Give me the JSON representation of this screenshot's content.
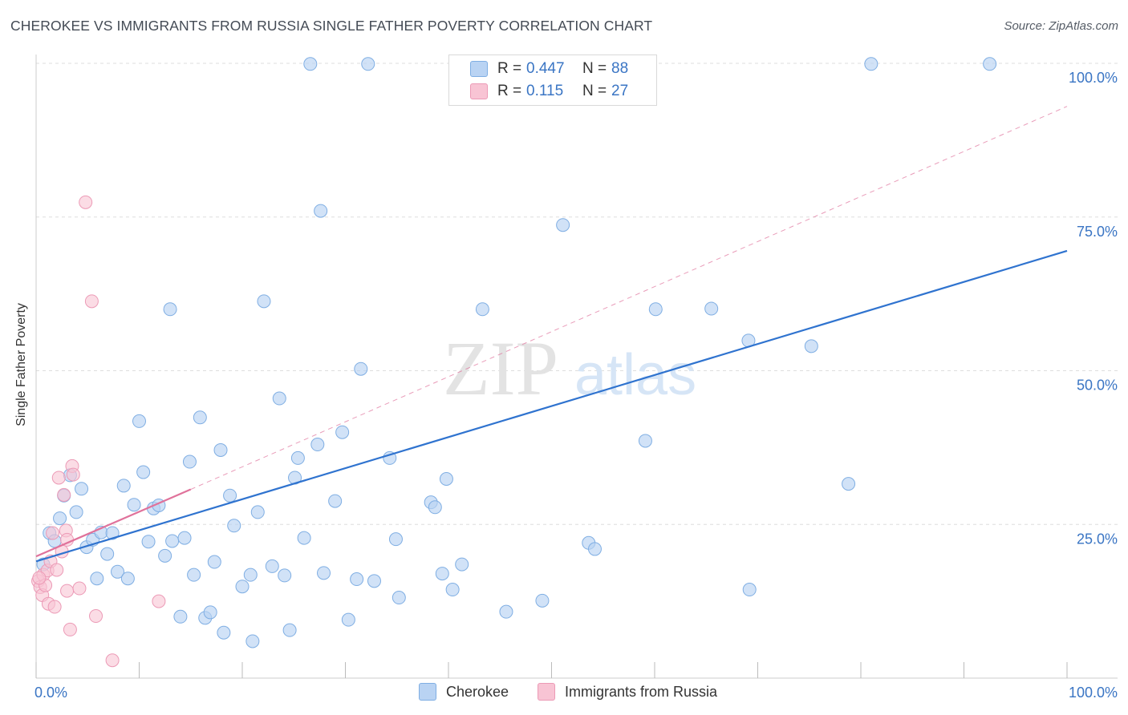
{
  "title": "CHEROKEE VS IMMIGRANTS FROM RUSSIA SINGLE FATHER POVERTY CORRELATION CHART",
  "source": "Source: ZipAtlas.com",
  "watermark": {
    "zip": "ZIP",
    "atlas": "atlas"
  },
  "legend": {
    "r_label": "R =",
    "n_label": "N =",
    "rows": [
      {
        "r": "0.447",
        "n": "88"
      },
      {
        "r": "0.115",
        "n": "27"
      }
    ]
  },
  "colors": {
    "cherokee_fill": "#b9d3f3",
    "cherokee_stroke": "#7faee3",
    "cherokee_line": "#2f73cf",
    "russia_fill": "#f8c4d4",
    "russia_stroke": "#ec9ab6",
    "russia_line": "#e0729b",
    "axis_text": "#3a75c4",
    "grid": "#dddddd"
  },
  "chart_data": {
    "type": "scatter",
    "xlabel": "",
    "ylabel": "Single Father Poverty",
    "xlim": [
      0,
      100
    ],
    "ylim": [
      0,
      100
    ],
    "x_tick_labels": [
      {
        "value": 0,
        "label": "0.0%"
      },
      {
        "value": 100,
        "label": "100.0%"
      }
    ],
    "y_tick_labels": [
      {
        "value": 25,
        "label": "25.0%"
      },
      {
        "value": 50,
        "label": "50.0%"
      },
      {
        "value": 75,
        "label": "75.0%"
      },
      {
        "value": 100,
        "label": "100.0%"
      }
    ],
    "grid": true,
    "legend_position": "top-center",
    "series": [
      {
        "name": "Cherokee",
        "r": 0.447,
        "n": 88,
        "trend": {
          "x": [
            0,
            100
          ],
          "y": [
            19.0,
            69.5
          ],
          "style": "solid"
        },
        "points": [
          [
            0.7,
            18.5
          ],
          [
            1.3,
            23.6
          ],
          [
            1.8,
            22.3
          ],
          [
            2.3,
            26.0
          ],
          [
            2.7,
            29.7
          ],
          [
            3.3,
            33.0
          ],
          [
            3.9,
            27.0
          ],
          [
            4.4,
            30.8
          ],
          [
            4.9,
            21.3
          ],
          [
            5.5,
            22.5
          ],
          [
            5.9,
            16.2
          ],
          [
            6.3,
            23.7
          ],
          [
            6.9,
            20.2
          ],
          [
            7.4,
            23.6
          ],
          [
            7.9,
            17.3
          ],
          [
            8.5,
            31.3
          ],
          [
            8.9,
            16.2
          ],
          [
            9.5,
            28.2
          ],
          [
            10.0,
            41.8
          ],
          [
            10.4,
            33.5
          ],
          [
            10.9,
            22.2
          ],
          [
            11.4,
            27.6
          ],
          [
            11.9,
            28.1
          ],
          [
            12.5,
            19.9
          ],
          [
            13.0,
            60.0
          ],
          [
            13.2,
            22.3
          ],
          [
            14.0,
            10.0
          ],
          [
            14.4,
            22.8
          ],
          [
            14.9,
            35.2
          ],
          [
            15.3,
            16.8
          ],
          [
            15.9,
            42.4
          ],
          [
            16.4,
            9.8
          ],
          [
            16.9,
            10.7
          ],
          [
            17.3,
            18.9
          ],
          [
            17.9,
            37.1
          ],
          [
            18.2,
            7.4
          ],
          [
            18.8,
            29.7
          ],
          [
            19.2,
            24.8
          ],
          [
            20.0,
            14.9
          ],
          [
            20.8,
            16.8
          ],
          [
            21.0,
            6.0
          ],
          [
            21.5,
            27.0
          ],
          [
            22.1,
            61.3
          ],
          [
            22.9,
            18.2
          ],
          [
            23.6,
            45.5
          ],
          [
            24.1,
            16.7
          ],
          [
            24.6,
            7.8
          ],
          [
            25.1,
            32.6
          ],
          [
            25.4,
            35.8
          ],
          [
            26.0,
            22.8
          ],
          [
            26.6,
            99.9
          ],
          [
            27.6,
            76.0
          ],
          [
            27.3,
            38.0
          ],
          [
            27.9,
            17.1
          ],
          [
            29.0,
            28.8
          ],
          [
            29.7,
            40.0
          ],
          [
            30.3,
            9.5
          ],
          [
            31.1,
            16.1
          ],
          [
            31.5,
            50.3
          ],
          [
            32.2,
            99.9
          ],
          [
            32.8,
            15.8
          ],
          [
            34.3,
            35.8
          ],
          [
            34.9,
            22.6
          ],
          [
            35.2,
            13.1
          ],
          [
            38.3,
            28.6
          ],
          [
            38.7,
            27.8
          ],
          [
            39.4,
            17.0
          ],
          [
            39.8,
            32.4
          ],
          [
            40.4,
            14.4
          ],
          [
            41.3,
            18.5
          ],
          [
            43.3,
            60.0
          ],
          [
            45.6,
            10.8
          ],
          [
            47.8,
            99.9
          ],
          [
            49.1,
            12.6
          ],
          [
            51.1,
            73.7
          ],
          [
            52.2,
            99.9
          ],
          [
            53.6,
            22.0
          ],
          [
            54.2,
            21.0
          ],
          [
            59.1,
            38.6
          ],
          [
            60.1,
            60.0
          ],
          [
            65.5,
            60.1
          ],
          [
            69.1,
            54.9
          ],
          [
            69.2,
            14.4
          ],
          [
            75.2,
            54.0
          ],
          [
            78.8,
            31.6
          ],
          [
            81.0,
            99.9
          ],
          [
            92.5,
            99.9
          ],
          [
            48.5,
            97.2
          ]
        ]
      },
      {
        "name": "Immigrants from Russia",
        "r": 0.115,
        "n": 27,
        "trend": {
          "x": [
            0,
            15
          ],
          "y": [
            19.8,
            30.7
          ],
          "style": "solid",
          "extended_to": [
            100,
            93.0
          ]
        },
        "points": [
          [
            0.2,
            15.8
          ],
          [
            0.4,
            14.8
          ],
          [
            0.6,
            13.5
          ],
          [
            0.7,
            16.8
          ],
          [
            0.9,
            15.1
          ],
          [
            1.1,
            17.5
          ],
          [
            1.2,
            12.1
          ],
          [
            1.4,
            19.0
          ],
          [
            1.6,
            23.6
          ],
          [
            1.8,
            11.6
          ],
          [
            2.0,
            17.6
          ],
          [
            2.2,
            32.6
          ],
          [
            2.5,
            20.6
          ],
          [
            2.7,
            29.8
          ],
          [
            2.9,
            24.0
          ],
          [
            3.0,
            22.5
          ],
          [
            3.0,
            14.2
          ],
          [
            3.3,
            7.9
          ],
          [
            3.5,
            34.5
          ],
          [
            3.6,
            33.1
          ],
          [
            4.2,
            14.6
          ],
          [
            4.8,
            77.4
          ],
          [
            5.4,
            61.3
          ],
          [
            5.8,
            10.1
          ],
          [
            7.4,
            2.9
          ],
          [
            11.9,
            12.5
          ],
          [
            0.3,
            16.3
          ]
        ]
      }
    ]
  }
}
